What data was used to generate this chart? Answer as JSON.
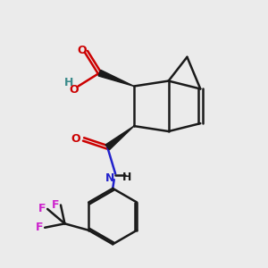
{
  "bg_color": "#ebebeb",
  "bond_color": "#1a1a1a",
  "oxygen_color": "#cc0000",
  "nitrogen_color": "#2222cc",
  "fluorine_color": "#cc22cc",
  "hydrogen_color": "#3a8a8a",
  "line_width": 1.8,
  "fig_width": 3.0,
  "fig_height": 3.0,
  "dpi": 100,
  "xlim": [
    0,
    10
  ],
  "ylim": [
    0,
    10
  ]
}
